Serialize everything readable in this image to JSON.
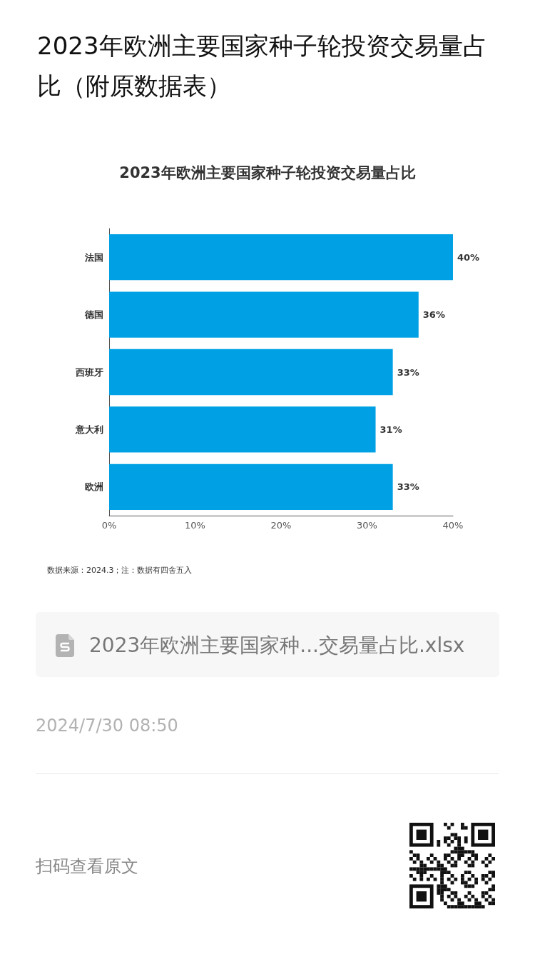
{
  "chart_data": {
    "type": "bar",
    "orientation": "horizontal",
    "title": "2023年欧洲主要国家种子轮投资交易量占比（附原数据表）",
    "subtitle": "2023年欧洲主要国家种子轮投资交易量占比",
    "categories": [
      "法国",
      "德国",
      "西班牙",
      "意大利",
      "欧洲"
    ],
    "values": [
      40,
      36,
      33,
      31,
      33
    ],
    "value_labels": [
      "40%",
      "36%",
      "33%",
      "31%",
      "33%"
    ],
    "color": "#00a0e4",
    "xlim": [
      0,
      40
    ],
    "xticks": [
      {
        "value": 0,
        "label": "0%"
      },
      {
        "value": 10,
        "label": "10%"
      },
      {
        "value": 20,
        "label": "20%"
      },
      {
        "value": 30,
        "label": "30%"
      },
      {
        "value": 40,
        "label": "40%"
      }
    ],
    "annotations": [
      "数据来源：2024.3；注：数据有四舍五入",
      "2023年欧洲主要国家种...交易量占比.xlsx",
      "2024/7/30 08:50",
      "扫码查看原文"
    ]
  }
}
